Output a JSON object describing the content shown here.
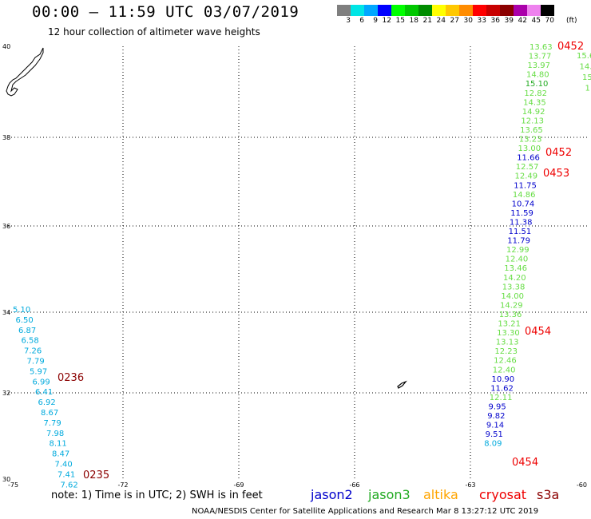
{
  "title": "00:00 – 11:59 UTC 03/07/2019",
  "subtitle": "12 hour collection of altimeter wave heights",
  "colorbar": {
    "colors": [
      "#7f7f7f",
      "#00e5e5",
      "#00a7ff",
      "#0000ff",
      "#00ff00",
      "#00c800",
      "#008c00",
      "#ffff00",
      "#ffc800",
      "#ff8c00",
      "#ff0000",
      "#c80000",
      "#8b0000",
      "#aa00aa",
      "#ee82ee",
      "#000000"
    ],
    "labels": [
      "3",
      "6",
      "9",
      "12",
      "15",
      "18",
      "21",
      "24",
      "27",
      "30",
      "33",
      "36",
      "39",
      "42",
      "45",
      "70"
    ],
    "unit": "(ft)"
  },
  "map": {
    "lon_range": [
      -75,
      -60
    ],
    "lat_range": [
      30,
      40
    ],
    "x_ticks": [
      "-75",
      "-72",
      "-69",
      "-66",
      "-63",
      "-60"
    ],
    "y_ticks": [
      "30",
      "32",
      "34",
      "36",
      "38",
      "40"
    ]
  },
  "colors": {
    "jason2": "#0000cc",
    "jason3": "#22aa22",
    "altika": "#ffa500",
    "cryosat": "#ee0000",
    "s3a": "#8b0000",
    "green_values": "#66dd44",
    "cyan_values": "#00aadd"
  },
  "tracks": [
    {
      "name": "track-east",
      "values": [
        {
          "v": "13.63",
          "c": "green_values"
        },
        {
          "v": "13.77",
          "c": "green_values"
        },
        {
          "v": "13.97",
          "c": "green_values"
        },
        {
          "v": "14.80",
          "c": "green_values"
        },
        {
          "v": "15.10",
          "c": "jason3"
        },
        {
          "v": "12.82",
          "c": "green_values"
        },
        {
          "v": "14.35",
          "c": "green_values"
        },
        {
          "v": "14.92",
          "c": "green_values"
        },
        {
          "v": "12.13",
          "c": "green_values"
        },
        {
          "v": "13.65",
          "c": "green_values"
        },
        {
          "v": "13.23",
          "c": "green_values"
        },
        {
          "v": "13.00",
          "c": "green_values"
        },
        {
          "v": "11.66",
          "c": "jason2"
        },
        {
          "v": "12.57",
          "c": "green_values"
        },
        {
          "v": "12.49",
          "c": "green_values"
        },
        {
          "v": "11.75",
          "c": "jason2"
        },
        {
          "v": "14.86",
          "c": "green_values"
        },
        {
          "v": "10.74",
          "c": "jason2"
        },
        {
          "v": "11.59",
          "c": "jason2"
        },
        {
          "v": "11.38",
          "c": "jason2"
        },
        {
          "v": "11.51",
          "c": "jason2"
        },
        {
          "v": "11.79",
          "c": "jason2"
        },
        {
          "v": "12.99",
          "c": "green_values"
        },
        {
          "v": "12.40",
          "c": "green_values"
        },
        {
          "v": "13.46",
          "c": "green_values"
        },
        {
          "v": "14.20",
          "c": "green_values"
        },
        {
          "v": "13.38",
          "c": "green_values"
        },
        {
          "v": "14.00",
          "c": "green_values"
        },
        {
          "v": "14.29",
          "c": "green_values"
        },
        {
          "v": "13.36",
          "c": "green_values"
        },
        {
          "v": "13.21",
          "c": "green_values"
        },
        {
          "v": "13.30",
          "c": "green_values"
        },
        {
          "v": "13.13",
          "c": "green_values"
        },
        {
          "v": "12.23",
          "c": "green_values"
        },
        {
          "v": "12.46",
          "c": "green_values"
        },
        {
          "v": "12.40",
          "c": "green_values"
        },
        {
          "v": "10.90",
          "c": "jason2"
        },
        {
          "v": "11.62",
          "c": "jason2"
        },
        {
          "v": "12.11",
          "c": "green_values"
        },
        {
          "v": "9.95",
          "c": "jason2"
        },
        {
          "v": "9.82",
          "c": "jason2"
        },
        {
          "v": "9.14",
          "c": "jason2"
        },
        {
          "v": "9.51",
          "c": "jason2"
        },
        {
          "v": "8.09",
          "c": "cyan_values"
        }
      ]
    },
    {
      "name": "track-far-east",
      "values": [
        {
          "v": "15.6",
          "c": "green_values"
        },
        {
          "v": "14.",
          "c": "green_values"
        },
        {
          "v": "15",
          "c": "green_values"
        },
        {
          "v": "1",
          "c": "green_values"
        }
      ]
    },
    {
      "name": "track-west",
      "values": [
        {
          "v": "5.10",
          "c": "cyan_values"
        },
        {
          "v": "6.50",
          "c": "cyan_values"
        },
        {
          "v": "6.87",
          "c": "cyan_values"
        },
        {
          "v": "6.58",
          "c": "cyan_values"
        },
        {
          "v": "7.26",
          "c": "cyan_values"
        },
        {
          "v": "7.79",
          "c": "cyan_values"
        },
        {
          "v": "5.97",
          "c": "cyan_values"
        },
        {
          "v": "6.99",
          "c": "cyan_values"
        },
        {
          "v": "6.41",
          "c": "cyan_values"
        },
        {
          "v": "6.92",
          "c": "cyan_values"
        },
        {
          "v": "8.67",
          "c": "cyan_values"
        },
        {
          "v": "7.79",
          "c": "cyan_values"
        },
        {
          "v": "7.98",
          "c": "cyan_values"
        },
        {
          "v": "8.11",
          "c": "cyan_values"
        },
        {
          "v": "8.47",
          "c": "cyan_values"
        },
        {
          "v": "7.40",
          "c": "cyan_values"
        },
        {
          "v": "7.41",
          "c": "cyan_values"
        },
        {
          "v": "7.62",
          "c": "cyan_values"
        }
      ]
    }
  ],
  "time_labels": [
    {
      "t": "0452",
      "c": "cryosat"
    },
    {
      "t": "0452",
      "c": "cryosat"
    },
    {
      "t": "0453",
      "c": "cryosat"
    },
    {
      "t": "0454",
      "c": "cryosat"
    },
    {
      "t": "0454",
      "c": "cryosat"
    },
    {
      "t": "0236",
      "c": "s3a"
    },
    {
      "t": "0235",
      "c": "s3a"
    }
  ],
  "legend": {
    "note": "note: 1) Time is in UTC; 2) SWH is in feet",
    "satellites": [
      {
        "name": "jason2",
        "c": "jason2"
      },
      {
        "name": "jason3",
        "c": "jason3"
      },
      {
        "name": "altika",
        "c": "altika"
      },
      {
        "name": "cryosat",
        "c": "cryosat"
      },
      {
        "name": "s3a",
        "c": "s3a"
      }
    ]
  },
  "footer": "NOAA/NESDIS Center for Satellite Applications and Research     Mar  8 13:27:12 UTC 2019"
}
